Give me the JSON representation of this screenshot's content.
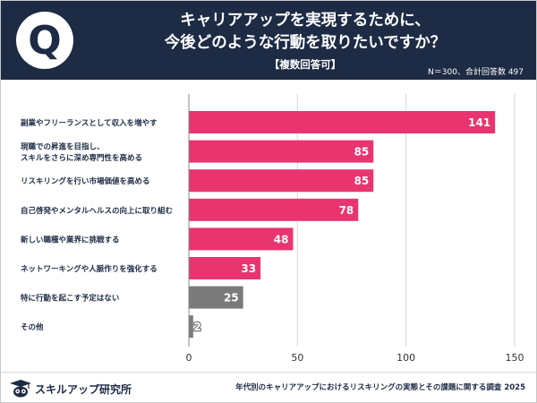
{
  "header": {
    "q_mark": "Q",
    "title_line1": "キャリアアップを実現するために、",
    "title_line2": "今後どのような行動を取りたいですか？",
    "subtitle": "【複数回答可】",
    "sample_note": "N＝300、合計回答数 497",
    "background_color": "#1d2b44"
  },
  "chart_data": {
    "type": "bar",
    "orientation": "horizontal",
    "categories": [
      [
        "副業やフリーランスとして収入を増やす"
      ],
      [
        "現職での昇進を目指し、",
        "スキルをさらに深め専門性を高める"
      ],
      [
        "リスキリングを行い市場価値を高める"
      ],
      [
        "自己啓発やメンタルヘルスの向上に取り組む"
      ],
      [
        "新しい職種や業界に挑戦する"
      ],
      [
        "ネットワーキングや人脈作りを強化する"
      ],
      [
        "特に行動を起こす予定はない"
      ],
      [
        "その他"
      ]
    ],
    "values": [
      141,
      85,
      85,
      78,
      48,
      33,
      25,
      2
    ],
    "data_labels": [
      "141",
      "85",
      "85",
      "78",
      "48",
      "33",
      "25",
      "2"
    ],
    "bar_colors": [
      "#e8356f",
      "#e8356f",
      "#e8356f",
      "#e8356f",
      "#e8356f",
      "#e8356f",
      "#7a7a7a",
      "#7a7a7a"
    ],
    "xlim": [
      0,
      150
    ],
    "xticks": [
      0,
      50,
      100,
      150
    ],
    "grid": "vertical gridlines",
    "legend": "none",
    "title": "",
    "xlabel": "",
    "ylabel": ""
  },
  "footer": {
    "brand_name": "スキルアップ研究所",
    "source": "年代別のキャリアアップにおけるリスキリングの実態とその課題に関する調査 2025"
  }
}
